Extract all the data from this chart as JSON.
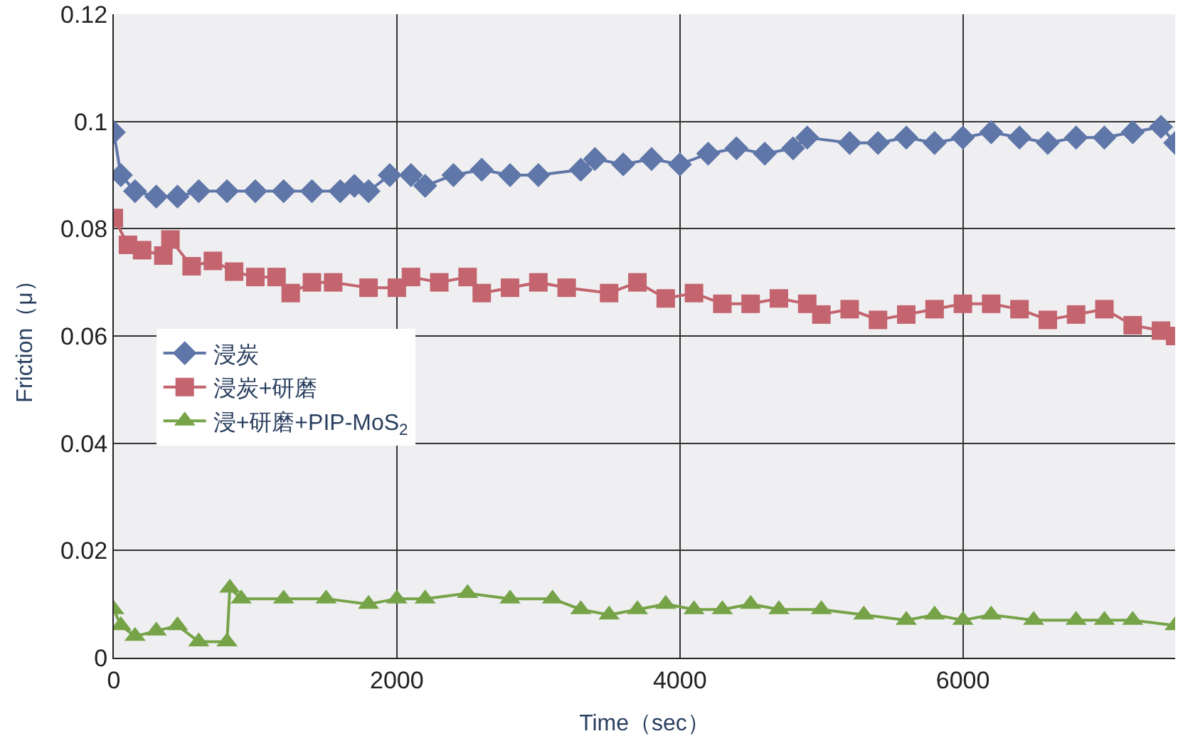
{
  "chart_data": {
    "type": "line",
    "xlabel": "Time（sec）",
    "ylabel": "Friction（μ）",
    "xlim": [
      0,
      7500
    ],
    "xticks": [
      0,
      2000,
      4000,
      6000
    ],
    "ylim": [
      0,
      0.12
    ],
    "yticks": [
      0,
      0.02,
      0.04,
      0.06,
      0.08,
      0.1,
      0.12
    ],
    "grid": true,
    "legend": "left",
    "series": [
      {
        "name": "浸炭",
        "color": "#5f76a8",
        "marker": "diamond",
        "x": [
          0,
          50,
          150,
          300,
          450,
          600,
          800,
          1000,
          1200,
          1400,
          1600,
          1700,
          1800,
          1950,
          2100,
          2200,
          2400,
          2600,
          2800,
          3000,
          3300,
          3400,
          3600,
          3800,
          4000,
          4200,
          4400,
          4600,
          4800,
          4900,
          5200,
          5400,
          5600,
          5800,
          6000,
          6200,
          6400,
          6600,
          6800,
          7000,
          7200,
          7400,
          7500
        ],
        "values": [
          0.098,
          0.09,
          0.087,
          0.086,
          0.086,
          0.087,
          0.087,
          0.087,
          0.087,
          0.087,
          0.087,
          0.088,
          0.087,
          0.09,
          0.09,
          0.088,
          0.09,
          0.091,
          0.09,
          0.09,
          0.091,
          0.093,
          0.092,
          0.093,
          0.092,
          0.094,
          0.095,
          0.094,
          0.095,
          0.097,
          0.096,
          0.096,
          0.097,
          0.096,
          0.097,
          0.098,
          0.097,
          0.096,
          0.097,
          0.097,
          0.098,
          0.099,
          0.096
        ]
      },
      {
        "name": "浸炭+研磨",
        "color": "#c3646e",
        "marker": "square",
        "x": [
          0,
          100,
          200,
          350,
          400,
          550,
          700,
          850,
          1000,
          1150,
          1250,
          1400,
          1550,
          1800,
          2000,
          2100,
          2300,
          2500,
          2600,
          2800,
          3000,
          3200,
          3500,
          3700,
          3900,
          4100,
          4300,
          4500,
          4700,
          4900,
          5000,
          5200,
          5400,
          5600,
          5800,
          6000,
          6200,
          6400,
          6600,
          6800,
          7000,
          7200,
          7400,
          7500
        ],
        "values": [
          0.082,
          0.077,
          0.076,
          0.075,
          0.078,
          0.073,
          0.074,
          0.072,
          0.071,
          0.071,
          0.068,
          0.07,
          0.07,
          0.069,
          0.069,
          0.071,
          0.07,
          0.071,
          0.068,
          0.069,
          0.07,
          0.069,
          0.068,
          0.07,
          0.067,
          0.068,
          0.066,
          0.066,
          0.067,
          0.066,
          0.064,
          0.065,
          0.063,
          0.064,
          0.065,
          0.066,
          0.066,
          0.065,
          0.063,
          0.064,
          0.065,
          0.062,
          0.061,
          0.06
        ]
      },
      {
        "name": "浸+研磨+PIP-MoS$_{2}$",
        "color": "#76a348",
        "marker": "triangle",
        "x": [
          0,
          50,
          150,
          300,
          450,
          600,
          800,
          820,
          900,
          1200,
          1500,
          1800,
          2000,
          2200,
          2500,
          2800,
          3100,
          3300,
          3500,
          3700,
          3900,
          4100,
          4300,
          4500,
          4700,
          5000,
          5300,
          5600,
          5800,
          6000,
          6200,
          6500,
          6800,
          7000,
          7200,
          7500
        ],
        "values": [
          0.009,
          0.006,
          0.004,
          0.005,
          0.006,
          0.003,
          0.003,
          0.013,
          0.011,
          0.011,
          0.011,
          0.01,
          0.011,
          0.011,
          0.012,
          0.011,
          0.011,
          0.009,
          0.008,
          0.009,
          0.01,
          0.009,
          0.009,
          0.01,
          0.009,
          0.009,
          0.008,
          0.007,
          0.008,
          0.007,
          0.008,
          0.007,
          0.007,
          0.007,
          0.007,
          0.006
        ]
      }
    ]
  }
}
